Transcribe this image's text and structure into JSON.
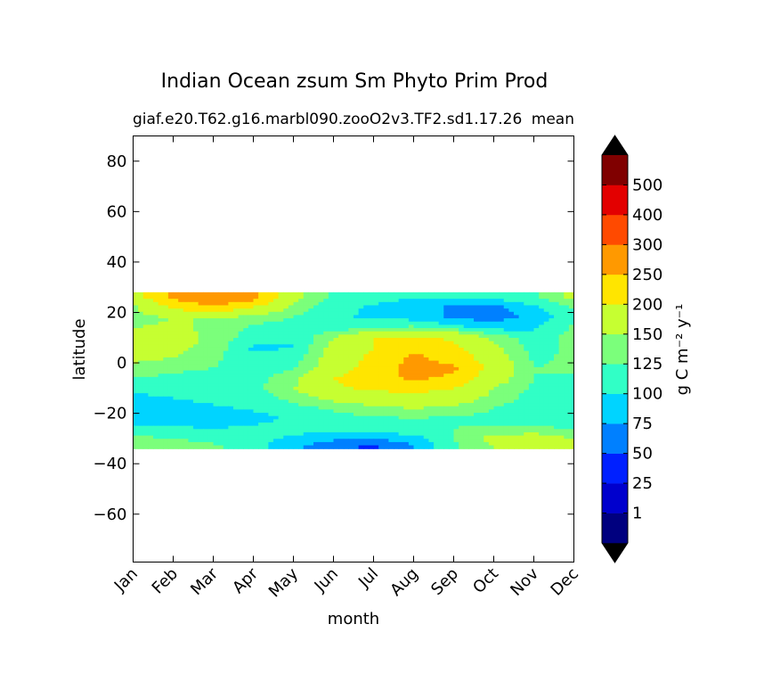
{
  "chart_data": {
    "type": "heatmap",
    "title": "Indian Ocean zsum Sm Phyto Prim Prod",
    "subtitle_left": "giaf.e20.T62.g16.marbl090.zooO2v3.TF2.sd1.17.26",
    "subtitle_right": "mean",
    "xlabel": "month",
    "ylabel": "latitude",
    "x_tick_labels": [
      "Jan",
      "Feb",
      "Mar",
      "Apr",
      "May",
      "Jun",
      "Jul",
      "Aug",
      "Sep",
      "Oct",
      "Nov",
      "Dec"
    ],
    "x_range": [
      1,
      12
    ],
    "y_range": [
      -79,
      90
    ],
    "y_ticks": [
      80,
      60,
      40,
      20,
      0,
      -20,
      -40,
      -60
    ],
    "y_tick_labels": [
      "80",
      "60",
      "40",
      "20",
      "0",
      "−20",
      "−40",
      "−60"
    ],
    "data_lat_range": [
      -34,
      28
    ],
    "colorbar": {
      "label": "g C m⁻² y⁻¹",
      "levels": [
        0,
        1,
        25,
        50,
        75,
        100,
        125,
        150,
        200,
        250,
        300,
        400,
        500,
        600
      ],
      "tick_labels": [
        "1",
        "25",
        "50",
        "75",
        "100",
        "125",
        "150",
        "200",
        "250",
        "300",
        "400",
        "500"
      ],
      "colors": [
        "#00007f",
        "#0000cd",
        "#0020ff",
        "#0080ff",
        "#00d4ff",
        "#31ffc6",
        "#7bff7b",
        "#c6ff31",
        "#ffe500",
        "#ff9900",
        "#ff4a00",
        "#e30000",
        "#800000"
      ],
      "extend": "both",
      "under_color": "#000000",
      "over_color": "#000000"
    },
    "field_description_levels": {
      "columns": [
        "Jan",
        "Feb",
        "Mar",
        "Apr",
        "May",
        "Jun",
        "Jul",
        "Aug",
        "Sep",
        "Oct",
        "Nov",
        "Dec"
      ],
      "latitudes": [
        26,
        22,
        18,
        14,
        10,
        6,
        2,
        -2,
        -6,
        -10,
        -14,
        -18,
        -22,
        -26,
        -30,
        -33
      ],
      "values": [
        [
          175,
          260,
          300,
          270,
          160,
          120,
          110,
          100,
          100,
          110,
          120,
          160
        ],
        [
          140,
          210,
          240,
          200,
          140,
          110,
          95,
          90,
          70,
          65,
          95,
          130
        ],
        [
          140,
          150,
          150,
          140,
          125,
          105,
          95,
          90,
          70,
          65,
          80,
          120
        ],
        [
          150,
          155,
          145,
          120,
          110,
          110,
          120,
          130,
          110,
          90,
          95,
          130
        ],
        [
          160,
          160,
          145,
          110,
          100,
          150,
          200,
          210,
          190,
          140,
          110,
          135
        ],
        [
          165,
          160,
          140,
          95,
          100,
          160,
          200,
          240,
          210,
          160,
          115,
          130
        ],
        [
          160,
          150,
          130,
          110,
          110,
          170,
          210,
          260,
          230,
          170,
          120,
          130
        ],
        [
          140,
          130,
          125,
          110,
          120,
          175,
          220,
          270,
          260,
          180,
          125,
          130
        ],
        [
          125,
          120,
          120,
          115,
          140,
          200,
          230,
          260,
          240,
          170,
          125,
          120
        ],
        [
          105,
          110,
          115,
          115,
          150,
          190,
          210,
          220,
          200,
          150,
          120,
          110
        ],
        [
          95,
          100,
          110,
          110,
          135,
          160,
          170,
          180,
          170,
          140,
          115,
          105
        ],
        [
          80,
          80,
          95,
          105,
          115,
          130,
          145,
          150,
          145,
          125,
          110,
          100
        ],
        [
          85,
          75,
          75,
          90,
          105,
          115,
          120,
          125,
          120,
          115,
          110,
          105
        ],
        [
          110,
          105,
          100,
          105,
          110,
          110,
          115,
          120,
          125,
          130,
          135,
          120
        ],
        [
          130,
          125,
          115,
          110,
          95,
          80,
          75,
          90,
          125,
          160,
          165,
          150
        ],
        [
          140,
          140,
          130,
          110,
          80,
          60,
          45,
          75,
          120,
          150,
          160,
          155
        ]
      ]
    }
  }
}
